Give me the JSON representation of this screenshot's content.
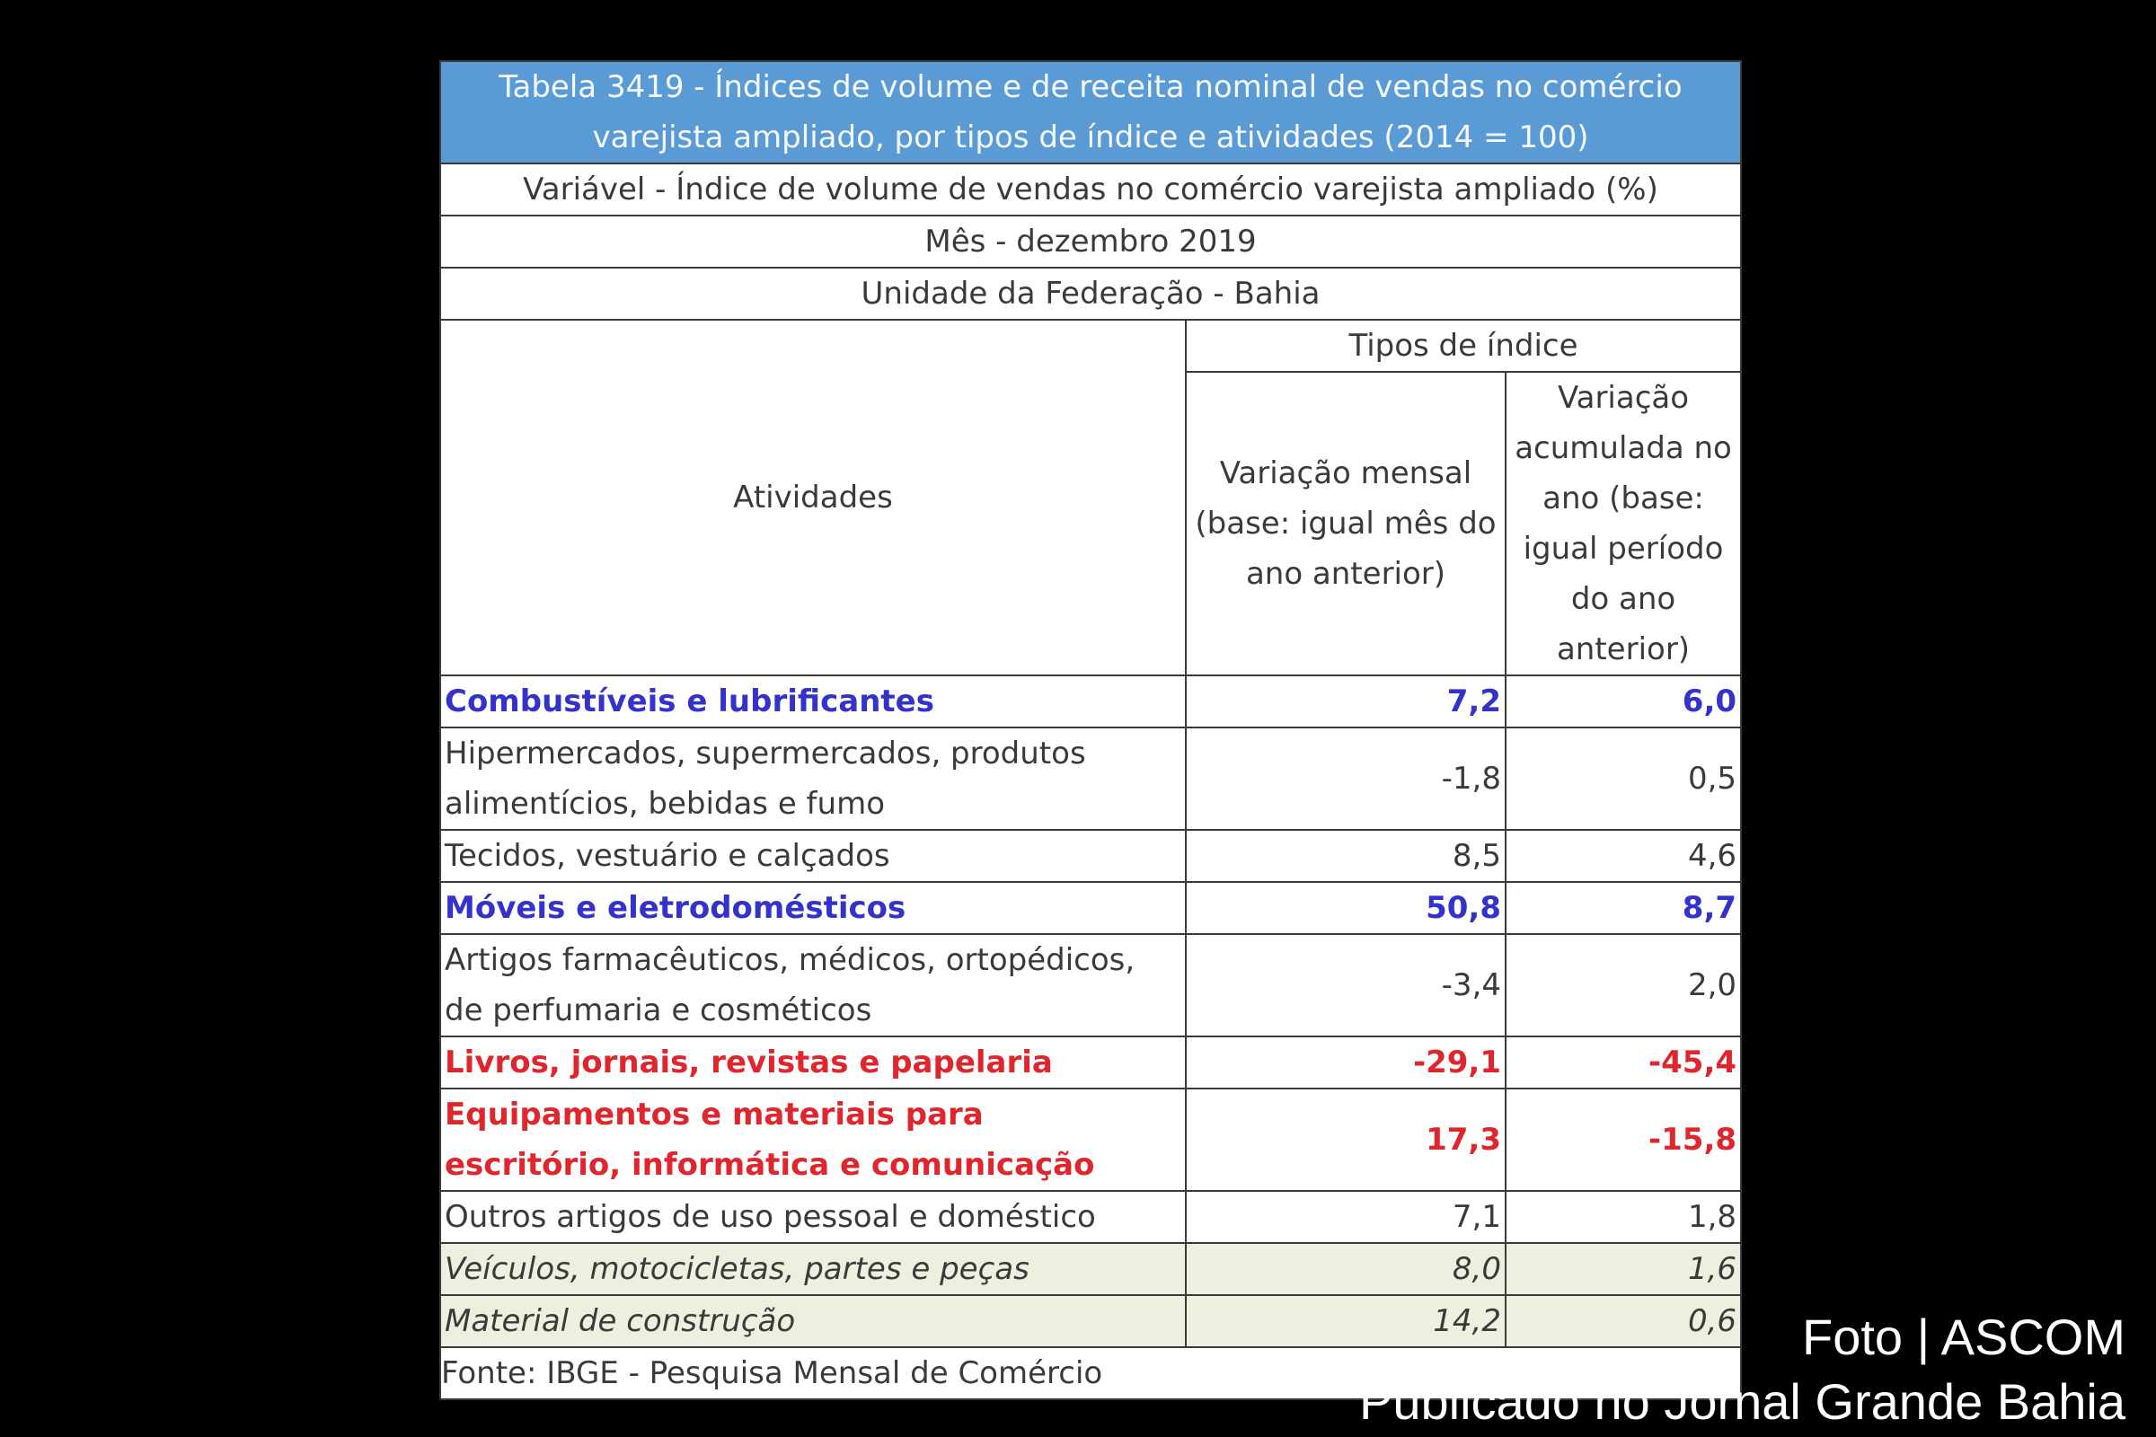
{
  "table": {
    "title": "Tabela 3419 - Índices de volume e de receita nominal de vendas no comércio varejista ampliado, por tipos de índice e atividades (2014 = 100)",
    "variable": "Variável - Índice de volume de vendas no comércio varejista ampliado (%)",
    "month": "Mês - dezembro 2019",
    "unit": "Unidade da Federação - Bahia",
    "index_types_header": "Tipos de índice",
    "activities_header": "Atividades",
    "col_monthly": "Variação mensal (base: igual mês do ano anterior)",
    "col_accumulated": "Variação acumulada no ano (base: igual período do ano anterior)",
    "rows": [
      {
        "label": "Combustíveis e lubrificantes",
        "monthly": "7,2",
        "accumulated": "6,0"
      },
      {
        "label": "Hipermercados, supermercados, produtos alimentícios, bebidas e fumo",
        "monthly": "-1,8",
        "accumulated": "0,5"
      },
      {
        "label": "Tecidos, vestuário e calçados",
        "monthly": "8,5",
        "accumulated": "4,6"
      },
      {
        "label": "Móveis e eletrodomésticos",
        "monthly": "50,8",
        "accumulated": "8,7"
      },
      {
        "label": "Artigos farmacêuticos, médicos, ortopédicos, de perfumaria e cosméticos",
        "monthly": "-3,4",
        "accumulated": "2,0"
      },
      {
        "label": "Livros, jornais, revistas e papelaria",
        "monthly": "-29,1",
        "accumulated": "-45,4"
      },
      {
        "label": "Equipamentos e materiais para escritório, informática e comunicação",
        "monthly": "17,3",
        "accumulated": "-15,8"
      },
      {
        "label": "Outros artigos de uso pessoal e doméstico",
        "monthly": "7,1",
        "accumulated": "1,8"
      },
      {
        "label": "Veículos, motocicletas, partes e peças",
        "monthly": "8,0",
        "accumulated": "1,6"
      },
      {
        "label": "Material de construção",
        "monthly": "14,2",
        "accumulated": "0,6"
      }
    ],
    "source": "Fonte: IBGE - Pesquisa Mensal de Comércio"
  },
  "credits": {
    "photo": "Foto | ASCOM",
    "publication": "Publicado no Jornal Grande Bahia"
  },
  "colors": {
    "background": "#000000",
    "title_band": "#5b9bd5",
    "highlight_blue": "#3333cc",
    "highlight_red": "#e0262d",
    "vehicle_rows_fill": "#ebf1de"
  }
}
